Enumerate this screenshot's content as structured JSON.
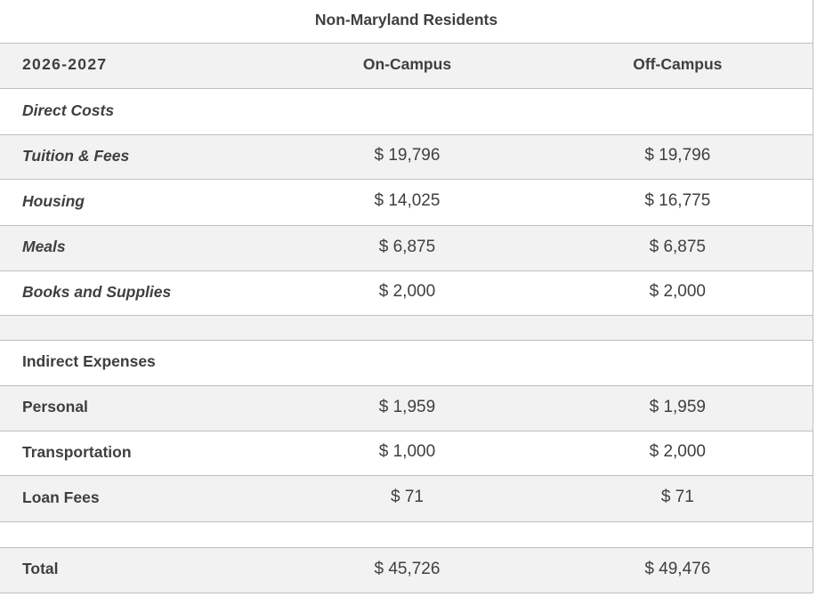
{
  "table": {
    "title": "Non-Maryland Residents",
    "header": {
      "year": "2026-2027",
      "on_campus": "On-Campus",
      "off_campus": "Off-Campus"
    },
    "direct": {
      "heading": "Direct Costs",
      "rows": [
        {
          "label": "Tuition & Fees",
          "on": "$ 19,796",
          "off": "$ 19,796"
        },
        {
          "label": "Housing",
          "on": "$ 14,025",
          "off": "$ 16,775"
        },
        {
          "label": "Meals",
          "on": "$ 6,875",
          "off": "$ 6,875"
        },
        {
          "label": "Books and Supplies",
          "on": "$ 2,000",
          "off": "$ 2,000"
        }
      ]
    },
    "indirect": {
      "heading": "Indirect Expenses",
      "rows": [
        {
          "label": "Personal",
          "on": "$ 1,959",
          "off": "$ 1,959"
        },
        {
          "label": "Transportation",
          "on": "$ 1,000",
          "off": "$ 2,000"
        },
        {
          "label": "Loan Fees",
          "on": "$ 71",
          "off": "$ 71"
        }
      ]
    },
    "total": {
      "label": "Total",
      "on": "$ 45,726",
      "off": "$ 49,476"
    },
    "colors": {
      "stripe": "#f2f2f2",
      "border": "#bfbfbf",
      "text": "#3f3f3f"
    }
  }
}
